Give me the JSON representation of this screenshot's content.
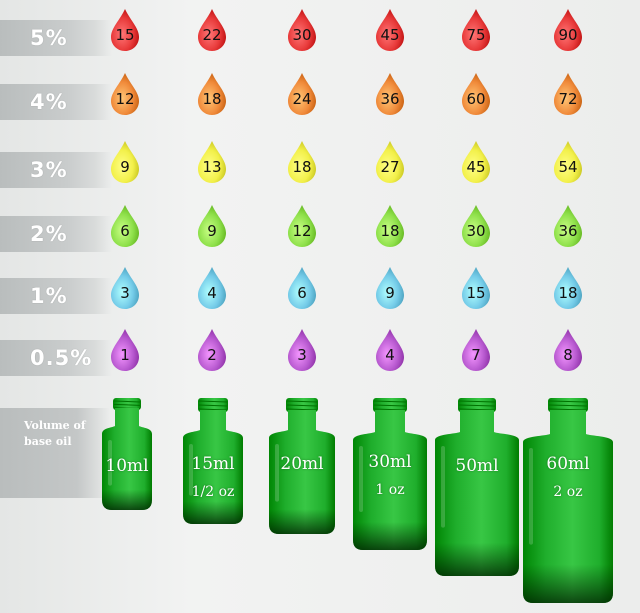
{
  "rows": [
    {
      "percent": "5%",
      "color": "#e83a3a",
      "values": [
        "15",
        "22",
        "30",
        "45",
        "75",
        "90"
      ]
    },
    {
      "percent": "4%",
      "color": "#f08a3a",
      "values": [
        "12",
        "18",
        "24",
        "36",
        "60",
        "72"
      ]
    },
    {
      "percent": "3%",
      "color": "#f2f04a",
      "values": [
        "9",
        "13",
        "18",
        "27",
        "45",
        "54"
      ]
    },
    {
      "percent": "2%",
      "color": "#8ee04a",
      "values": [
        "6",
        "9",
        "12",
        "18",
        "30",
        "36"
      ]
    },
    {
      "percent": "1%",
      "color": "#74cbe8",
      "values": [
        "3",
        "4",
        "6",
        "9",
        "15",
        "18"
      ]
    },
    {
      "percent": "0.5%",
      "color": "#b85ad0",
      "values": [
        "1",
        "2",
        "3",
        "4",
        "7",
        "8"
      ]
    }
  ],
  "volume_label": "Volume of base oil",
  "bottles": [
    {
      "label": "10ml",
      "sub": ""
    },
    {
      "label": "15ml",
      "sub": "1/2 oz"
    },
    {
      "label": "20ml",
      "sub": ""
    },
    {
      "label": "30ml",
      "sub": "1 oz"
    },
    {
      "label": "50ml",
      "sub": ""
    },
    {
      "label": "60ml",
      "sub": "2 oz"
    }
  ],
  "bottle_color": "#1fae2c"
}
